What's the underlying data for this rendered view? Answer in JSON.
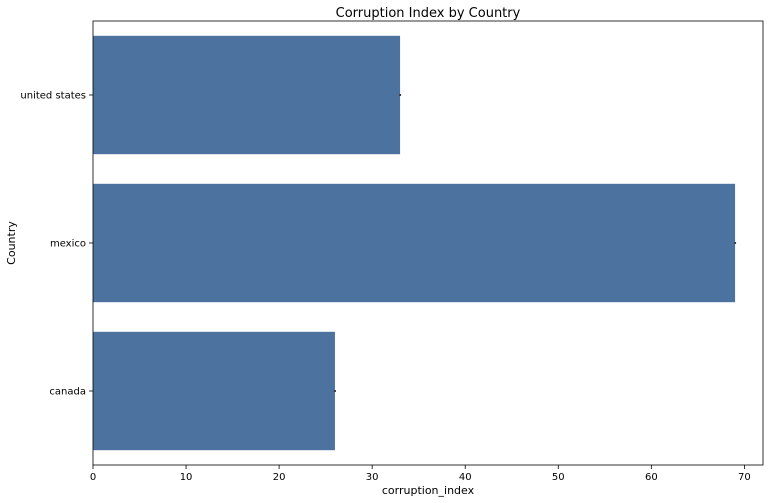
{
  "chart_data": {
    "type": "bar",
    "orientation": "horizontal",
    "title": "Corruption Index by Country",
    "xlabel": "corruption_index",
    "ylabel": "Country",
    "categories": [
      "united states",
      "mexico",
      "canada"
    ],
    "values": [
      33,
      69,
      26
    ],
    "xlim": [
      0,
      72
    ],
    "xticks": [
      0,
      10,
      20,
      30,
      40,
      50,
      60,
      70
    ],
    "grid": false,
    "bar_color": "#4c72a0",
    "error_bar_color": "#3d3d3d"
  }
}
